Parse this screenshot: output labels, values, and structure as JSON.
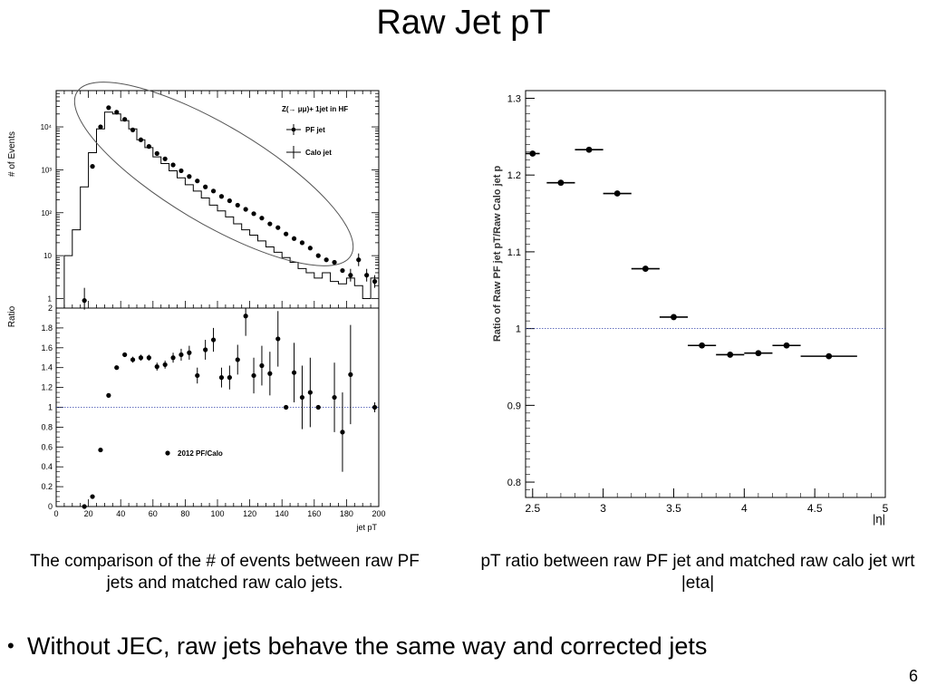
{
  "slide": {
    "title": "Raw Jet pT",
    "left_caption": "The comparison of the # of events between raw PF jets and matched raw calo jets.",
    "right_caption": "pT ratio between raw PF jet and matched raw calo jet wrt |eta|",
    "bullet_text": "Without JEC, raw jets behave the same way and corrected jets",
    "page_number": "6"
  },
  "chart_data": [
    {
      "type": "scatter",
      "panel": "events",
      "ylabel": "# of Events",
      "log_scale_y": true,
      "ylim": [
        0.6,
        70000
      ],
      "xlim": [
        0,
        200
      ],
      "ytick_labels": [
        "1",
        "10",
        "10²",
        "10³",
        "10⁴"
      ],
      "legend": {
        "title": "Z(→ μμ)+ 1jet in HF",
        "entries": [
          "PF jet",
          "Calo jet"
        ],
        "position": "top-right"
      },
      "series": [
        {
          "name": "PF jet",
          "style": "points",
          "x": [
            17.5,
            22.5,
            27.5,
            32.5,
            37.5,
            42.5,
            47.5,
            52.5,
            57.5,
            62.5,
            67.5,
            72.5,
            77.5,
            82.5,
            87.5,
            92.5,
            97.5,
            102.5,
            107.5,
            112.5,
            117.5,
            122.5,
            127.5,
            132.5,
            137.5,
            142.5,
            147.5,
            152.5,
            157.5,
            162.5,
            167.5,
            172.5,
            177.5,
            182.5,
            187.5,
            192.5,
            197.5
          ],
          "y": [
            0.9,
            1200,
            10000,
            28000,
            22000,
            15000,
            8500,
            5000,
            3500,
            2400,
            1800,
            1300,
            950,
            700,
            550,
            400,
            320,
            240,
            190,
            150,
            120,
            95,
            75,
            55,
            45,
            32,
            25,
            20,
            15,
            10,
            8,
            7,
            4.5,
            3.5,
            8,
            3.5,
            2.5
          ]
        },
        {
          "name": "Calo jet",
          "style": "step",
          "edges": [
            5,
            10,
            15,
            20,
            25,
            30,
            35,
            40,
            45,
            50,
            55,
            60,
            65,
            70,
            75,
            80,
            85,
            90,
            95,
            100,
            105,
            110,
            115,
            120,
            125,
            130,
            135,
            140,
            145,
            150,
            155,
            160,
            165,
            170,
            175,
            180,
            185,
            190,
            195,
            200
          ],
          "y": [
            10,
            40,
            400,
            2500,
            9000,
            22000,
            20000,
            14000,
            9000,
            5000,
            3300,
            2000,
            1400,
            950,
            650,
            450,
            320,
            220,
            150,
            110,
            80,
            55,
            40,
            30,
            22,
            16,
            12,
            9,
            7,
            5,
            4,
            3,
            4,
            2.5,
            2.2,
            3,
            2,
            1,
            3
          ]
        }
      ]
    },
    {
      "type": "scatter",
      "panel": "ratio",
      "xlabel": "jet pT",
      "ylabel": "Ratio",
      "xlim": [
        0,
        200
      ],
      "ylim": [
        0,
        2
      ],
      "xticks": [
        0,
        20,
        40,
        60,
        80,
        100,
        120,
        140,
        160,
        180,
        200
      ],
      "yticks": [
        0,
        0.2,
        0.4,
        0.6,
        0.8,
        1,
        1.2,
        1.4,
        1.6,
        1.8,
        2
      ],
      "reference_line": 1,
      "legend": {
        "entries": [
          "2012 PF/Calo"
        ],
        "position": "middle"
      },
      "series": [
        {
          "name": "2012 PF/Calo",
          "x": [
            17.5,
            22.5,
            27.5,
            32.5,
            37.5,
            42.5,
            47.5,
            52.5,
            57.5,
            62.5,
            67.5,
            72.5,
            77.5,
            82.5,
            87.5,
            92.5,
            97.5,
            102.5,
            107.5,
            112.5,
            117.5,
            122.5,
            127.5,
            132.5,
            137.5,
            142.5,
            147.5,
            152.5,
            157.5,
            162.5,
            172.5,
            177.5,
            182.5,
            197.5
          ],
          "y": [
            0,
            0.1,
            0.57,
            1.12,
            1.4,
            1.53,
            1.48,
            1.5,
            1.5,
            1.41,
            1.43,
            1.5,
            1.53,
            1.55,
            1.32,
            1.58,
            1.68,
            1.3,
            1.3,
            1.48,
            1.92,
            1.32,
            1.42,
            1.34,
            1.69,
            1.0,
            1.35,
            1.1,
            1.15,
            1.0,
            1.1,
            0.75,
            1.33,
            1.0
          ],
          "yerr": [
            0,
            0,
            0,
            0.02,
            0.02,
            0.02,
            0.03,
            0.03,
            0.03,
            0.04,
            0.04,
            0.05,
            0.06,
            0.07,
            0.08,
            0.1,
            0.12,
            0.1,
            0.12,
            0.15,
            0.2,
            0.18,
            0.2,
            0.22,
            0.28,
            0,
            0.3,
            0.32,
            0.35,
            0,
            0.35,
            0.4,
            0.5,
            0.05
          ]
        }
      ]
    },
    {
      "type": "scatter",
      "panel": "eta",
      "xlabel": "|η|",
      "ylabel": "Ratio of Raw PF jet pT/Raw Calo jet p",
      "xlim": [
        2.45,
        5
      ],
      "ylim": [
        0.78,
        1.31
      ],
      "xticks": [
        2.5,
        3,
        3.5,
        4,
        4.5,
        5
      ],
      "yticks": [
        0.8,
        0.9,
        1,
        1.1,
        1.2,
        1.3
      ],
      "reference_line": 1,
      "series": [
        {
          "name": "",
          "x": [
            2.5,
            2.7,
            2.9,
            3.1,
            3.3,
            3.5,
            3.7,
            3.9,
            4.1,
            4.3,
            4.6
          ],
          "y": [
            1.228,
            1.19,
            1.233,
            1.176,
            1.078,
            1.015,
            0.978,
            0.966,
            0.968,
            0.978,
            0.964
          ],
          "xerr": [
            0.05,
            0.1,
            0.1,
            0.1,
            0.1,
            0.1,
            0.1,
            0.1,
            0.1,
            0.1,
            0.2
          ]
        }
      ]
    }
  ]
}
